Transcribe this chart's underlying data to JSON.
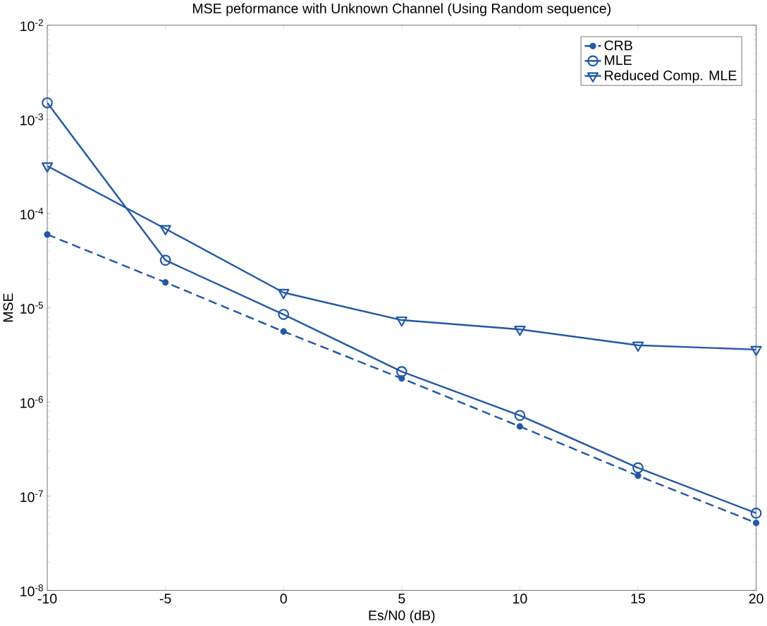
{
  "chart_data": {
    "type": "line",
    "title": "MSE peformance with Unknown Channel (Using Random sequence)",
    "xlabel": "Es/N0 (dB)",
    "ylabel": "MSE",
    "x": [
      -10,
      -5,
      0,
      5,
      10,
      15,
      20
    ],
    "series": [
      {
        "name": "CRB",
        "color": "#2358a8",
        "marker": "circle",
        "line_style": "dashed",
        "values": [
          6e-05,
          1.86e-05,
          5.6e-06,
          1.78e-06,
          5.5e-07,
          1.65e-07,
          5.2e-08
        ]
      },
      {
        "name": "MLE",
        "color": "#2358a8",
        "marker": "circle",
        "line_style": "solid",
        "values": [
          0.0015,
          3.2e-05,
          8.5e-06,
          2.1e-06,
          7.2e-07,
          2e-07,
          6.6e-08
        ]
      },
      {
        "name": "Reduced Comp. MLE",
        "color": "#2358a8",
        "marker": "triangle",
        "line_style": "solid",
        "values": [
          0.00032,
          6.9e-05,
          1.45e-05,
          7.4e-06,
          5.9e-06,
          4e-06,
          3.6e-06
        ]
      }
    ],
    "log": "y",
    "legend": "top right",
    "xlim": [
      -10,
      20
    ],
    "xticks": [
      -10,
      -5,
      0,
      5,
      10,
      15,
      20
    ],
    "ylim": [
      1e-08,
      0.01
    ],
    "yticks": [
      {
        "value": 1e-08,
        "label": "10$^{-8}$"
      },
      {
        "value": 1e-07,
        "label": "10$^{-7}$"
      },
      {
        "value": 1e-06,
        "label": "10$^{-6}$"
      },
      {
        "value": 1e-05,
        "label": "10$^{-5}$"
      },
      {
        "value": 0.0001,
        "label": "10$^{-4}$"
      },
      {
        "value": 0.001,
        "label": "10$^{-3}$"
      },
      {
        "value": 0.01,
        "label": "10$^{-2}$"
      }
    ]
  }
}
